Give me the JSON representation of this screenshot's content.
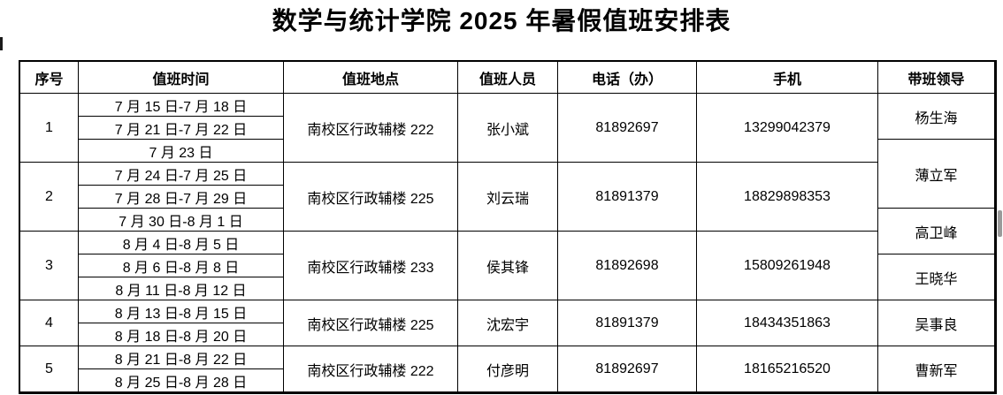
{
  "title": "数学与统计学院 2025 年暑假值班安排表",
  "colors": {
    "table_border": "#000000",
    "text": "#000000",
    "background": "#ffffff",
    "scrollbar_fragment": "#9a9a9a"
  },
  "table": {
    "headers": [
      "序号",
      "值班时间",
      "值班地点",
      "值班人员",
      "电话（办）",
      "手机",
      "带班领导"
    ],
    "groups": [
      {
        "no": "1",
        "dates": [
          "7 月 15 日-7 月 18 日",
          "7 月 21 日-7 月 22 日",
          "7 月 23 日"
        ],
        "location": "南校区行政辅楼 222",
        "person": "张小斌",
        "office_phone": "81892697",
        "mobile": "13299042379"
      },
      {
        "no": "2",
        "dates": [
          "7 月 24 日-7 月 25 日",
          "7 月 28 日-7 月 29 日",
          "7 月 30 日-8 月 1 日"
        ],
        "location": "南校区行政辅楼 225",
        "person": "刘云瑞",
        "office_phone": "81891379",
        "mobile": "18829898353"
      },
      {
        "no": "3",
        "dates": [
          "8 月 4 日-8 月 5 日",
          "8 月 6 日-8 月 8 日",
          "8 月 11 日-8 月 12 日"
        ],
        "location": "南校区行政辅楼 233",
        "person": "侯其锋",
        "office_phone": "81892698",
        "mobile": "15809261948"
      },
      {
        "no": "4",
        "dates": [
          "8 月 13 日-8 月 15 日",
          "8 月 18 日-8 月 20 日"
        ],
        "location": "南校区行政辅楼 225",
        "person": "沈宏宇",
        "office_phone": "81891379",
        "mobile": "18434351863"
      },
      {
        "no": "5",
        "dates": [
          "8 月 21 日-8 月 22 日",
          "8 月 25 日-8 月 28 日"
        ],
        "location": "南校区行政辅楼 222",
        "person": "付彦明",
        "office_phone": "81892697",
        "mobile": "18165216520"
      }
    ],
    "leaders": [
      {
        "name": "杨生海",
        "row_span": 2
      },
      {
        "name": "薄立军",
        "row_span": 3
      },
      {
        "name": "高卫峰",
        "row_span": 2
      },
      {
        "name": "王晓华",
        "row_span": 2
      },
      {
        "name": "吴事良",
        "row_span": 2
      },
      {
        "name": "曹新军",
        "row_span": 2
      }
    ]
  }
}
